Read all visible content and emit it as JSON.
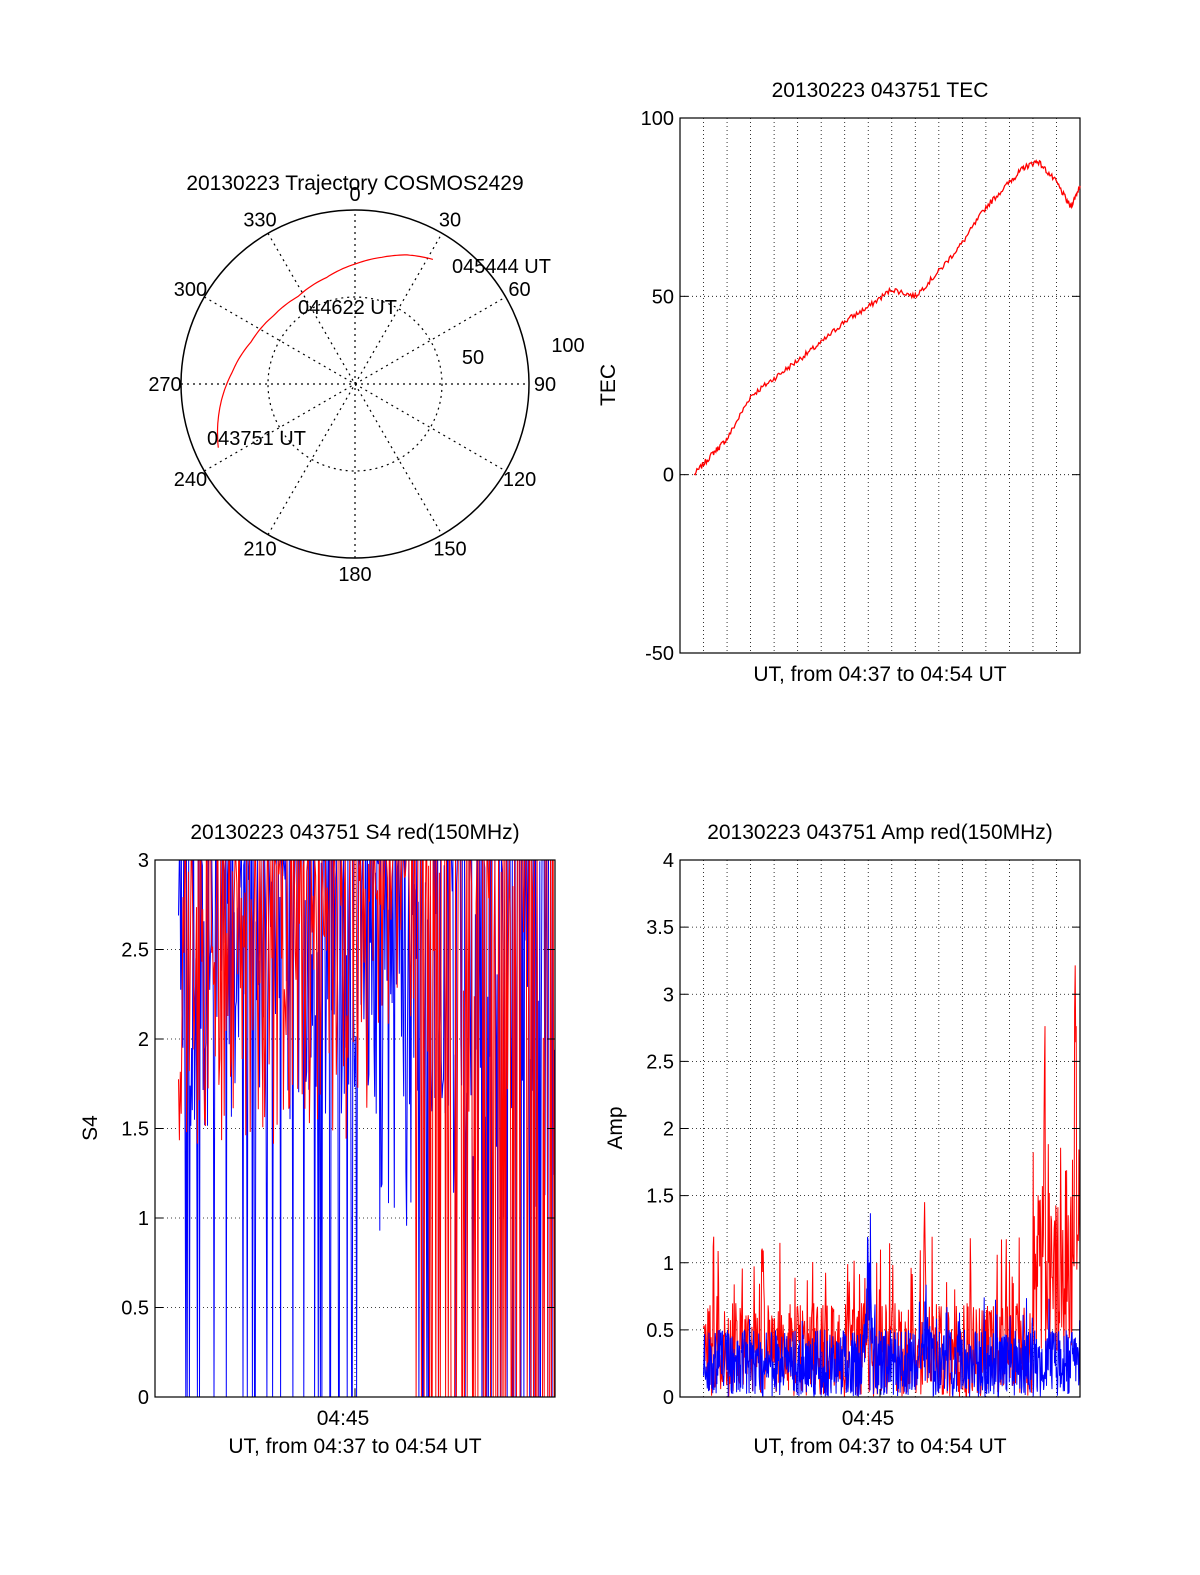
{
  "colors": {
    "red": "#ff0000",
    "blue": "#0000ff",
    "axis": "#000000",
    "grid": "#000000",
    "background": "#ffffff"
  },
  "polar": {
    "title": "20130223 Trajectory COSMOS2429",
    "azimuth_labels": [
      "0",
      "30",
      "60",
      "90",
      "120",
      "150",
      "180",
      "210",
      "240",
      "270",
      "300",
      "330"
    ],
    "radial_labels": [
      "50",
      "100"
    ],
    "annotations": [
      {
        "text": "045444 UT",
        "az": 32,
        "el": 14
      },
      {
        "text": "044622 UT",
        "az": 327,
        "el": 45
      },
      {
        "text": "043751 UT",
        "az": 245,
        "el": 12
      }
    ]
  },
  "tec": {
    "title": "20130223 043751 TEC",
    "xlabel": "UT, from 04:37 to 04:54 UT",
    "ylabel": "TEC",
    "ytick_labels": [
      "-50",
      "0",
      "50",
      "100"
    ]
  },
  "s4": {
    "title": "20130223 043751 S4 red(150MHz)",
    "xlabel": "UT, from 04:37 to 04:54 UT",
    "ylabel": "S4",
    "xtick_label": "04:45",
    "ytick_labels": [
      "0",
      "0.5",
      "1",
      "1.5",
      "2",
      "2.5",
      "3"
    ]
  },
  "amp": {
    "title": "20130223 043751 Amp red(150MHz)",
    "xlabel": "UT, from 04:37 to 04:54 UT",
    "ylabel": "Amp",
    "xtick_label": "04:45",
    "ytick_labels": [
      "0",
      "0.5",
      "1",
      "1.5",
      "2",
      "2.5",
      "3",
      "3.5",
      "4"
    ]
  },
  "chart_data": [
    {
      "type": "scatter",
      "title": "20130223 Trajectory COSMOS2429",
      "projection": "polar",
      "theta_direction": "clockwise from north",
      "radial_axis": "elevation",
      "radial_labels": [
        50,
        100
      ],
      "series": [
        {
          "color": "#ff0000",
          "points": [
            {
              "az": 245,
              "el": 12
            },
            {
              "az": 260,
              "el": 19
            },
            {
              "az": 275,
              "el": 26
            },
            {
              "az": 292,
              "el": 32
            },
            {
              "az": 310,
              "el": 35
            },
            {
              "az": 327,
              "el": 36
            },
            {
              "az": 345,
              "el": 33
            },
            {
              "az": 0,
              "el": 28
            },
            {
              "az": 12,
              "el": 23
            },
            {
              "az": 22,
              "el": 18
            },
            {
              "az": 32,
              "el": 14
            }
          ]
        }
      ]
    },
    {
      "type": "line",
      "title": "20130223 043751 TEC",
      "xlabel": "UT, from 04:37 to 04:54 UT",
      "ylabel": "TEC",
      "xlim": [
        0,
        17
      ],
      "ylim": [
        -50,
        100
      ],
      "grid": true,
      "series": [
        {
          "color": "#ff0000",
          "x": [
            0.6,
            1.4,
            2.0,
            3.0,
            4.0,
            5.0,
            6.0,
            7.0,
            8.0,
            9.0,
            10.0,
            11.0,
            12.0,
            13.0,
            14.0,
            14.6,
            15.2,
            16.0,
            16.6,
            17.0
          ],
          "y": [
            0,
            6,
            10,
            22,
            27,
            32,
            37,
            43,
            47,
            52,
            50,
            57,
            65,
            75,
            82,
            86,
            88,
            82,
            75,
            81
          ]
        }
      ]
    },
    {
      "type": "line",
      "title": "20130223 043751 S4 red(150MHz)",
      "xlabel": "UT, from 04:37 to 04:54 UT",
      "ylabel": "S4",
      "xlim": [
        0,
        17
      ],
      "ylim": [
        0,
        3
      ],
      "xticks": [
        "04:45"
      ],
      "grid": true,
      "series": [
        {
          "color": "#ff0000",
          "x_range": [
            1,
            17
          ],
          "typical_range": [
            1.4,
            3.0
          ],
          "description_values": [
            2.2,
            2.6,
            1.8,
            2.9,
            2.4,
            2.0,
            2.7,
            3.0
          ]
        },
        {
          "color": "#0000ff",
          "x_range": [
            1,
            17
          ],
          "typical_range": [
            0,
            3.0
          ],
          "description_values": [
            2.5,
            1.2,
            2.8,
            0.0,
            2.6,
            0.7,
            3.0,
            0.0
          ]
        }
      ]
    },
    {
      "type": "line",
      "title": "20130223 043751 Amp red(150MHz)",
      "xlabel": "UT, from 04:37 to 04:54 UT",
      "ylabel": "Amp",
      "xlim": [
        0,
        17
      ],
      "ylim": [
        0,
        4
      ],
      "xticks": [
        "04:45"
      ],
      "grid": true,
      "series": [
        {
          "color": "#ff0000",
          "x_range": [
            1,
            17
          ],
          "baseline": 0.55,
          "peaks": [
            {
              "x": 1.6,
              "y": 1.2
            },
            {
              "x": 3.5,
              "y": 1.2
            },
            {
              "x": 10.4,
              "y": 1.6
            },
            {
              "x": 15.5,
              "y": 2.2
            },
            {
              "x": 16.8,
              "y": 2.65
            }
          ]
        },
        {
          "color": "#0000ff",
          "x_range": [
            1,
            17
          ],
          "baseline": 0.35,
          "peaks": [
            {
              "x": 8.0,
              "y": 1.75
            },
            {
              "x": 10.5,
              "y": 1.25
            }
          ]
        }
      ]
    }
  ]
}
